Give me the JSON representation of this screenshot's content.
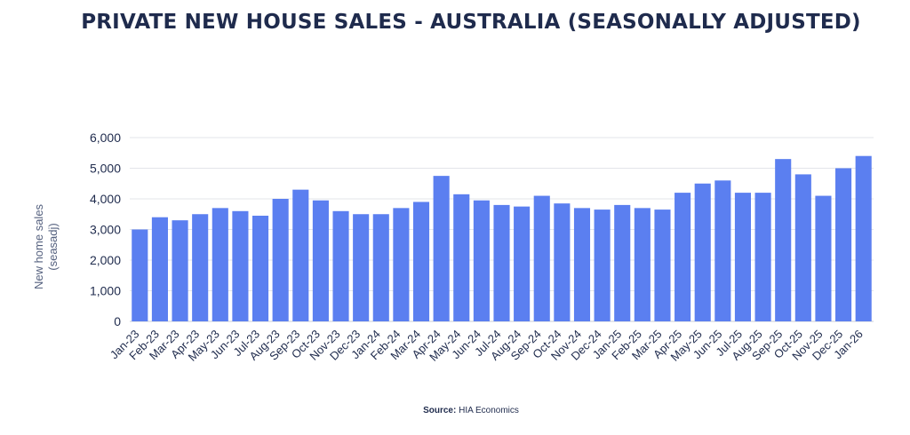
{
  "chart_data": {
    "type": "bar",
    "title": "PRIVATE NEW HOUSE SALES - AUSTRALIA (SEASONALLY ADJUSTED)",
    "xlabel": "",
    "ylabel": "New home sales (seasadj)",
    "ylim": [
      0,
      6000
    ],
    "yticks": [
      "0",
      "1,000",
      "2,000",
      "3,000",
      "4,000",
      "5,000",
      "6,000"
    ],
    "grid": true,
    "bar_color": "#5b7ff0",
    "categories": [
      "Jan-23",
      "Feb-23",
      "Mar-23",
      "Apr-23",
      "May-23",
      "Jun-23",
      "Jul-23",
      "Aug-23",
      "Sep-23",
      "Oct-23",
      "Nov-23",
      "Dec-23",
      "Jan-24",
      "Feb-24",
      "Mar-24",
      "Apr-24",
      "May-24",
      "Jun-24",
      "Jul-24",
      "Aug-24",
      "Sep-24",
      "Oct-24",
      "Nov-24",
      "Dec-24",
      "Jan-25",
      "Feb-25",
      "Mar-25",
      "Apr-25",
      "May-25",
      "Jun-25",
      "Jul-25",
      "Aug-25",
      "Sep-25",
      "Oct-25",
      "Nov-25",
      "Dec-25",
      "Jan-26"
    ],
    "values": [
      3000,
      3400,
      3300,
      3500,
      3700,
      3600,
      3450,
      4000,
      4300,
      3950,
      3600,
      3500,
      3500,
      3700,
      3900,
      4750,
      4150,
      3950,
      3800,
      3750,
      4100,
      3850,
      3700,
      3650,
      3800,
      3700,
      3650,
      4200,
      4500,
      4600,
      4200,
      4200,
      5300,
      4800,
      4100,
      5000,
      5400
    ]
  },
  "source": {
    "label": "Source:",
    "text": "HIA Economics"
  }
}
